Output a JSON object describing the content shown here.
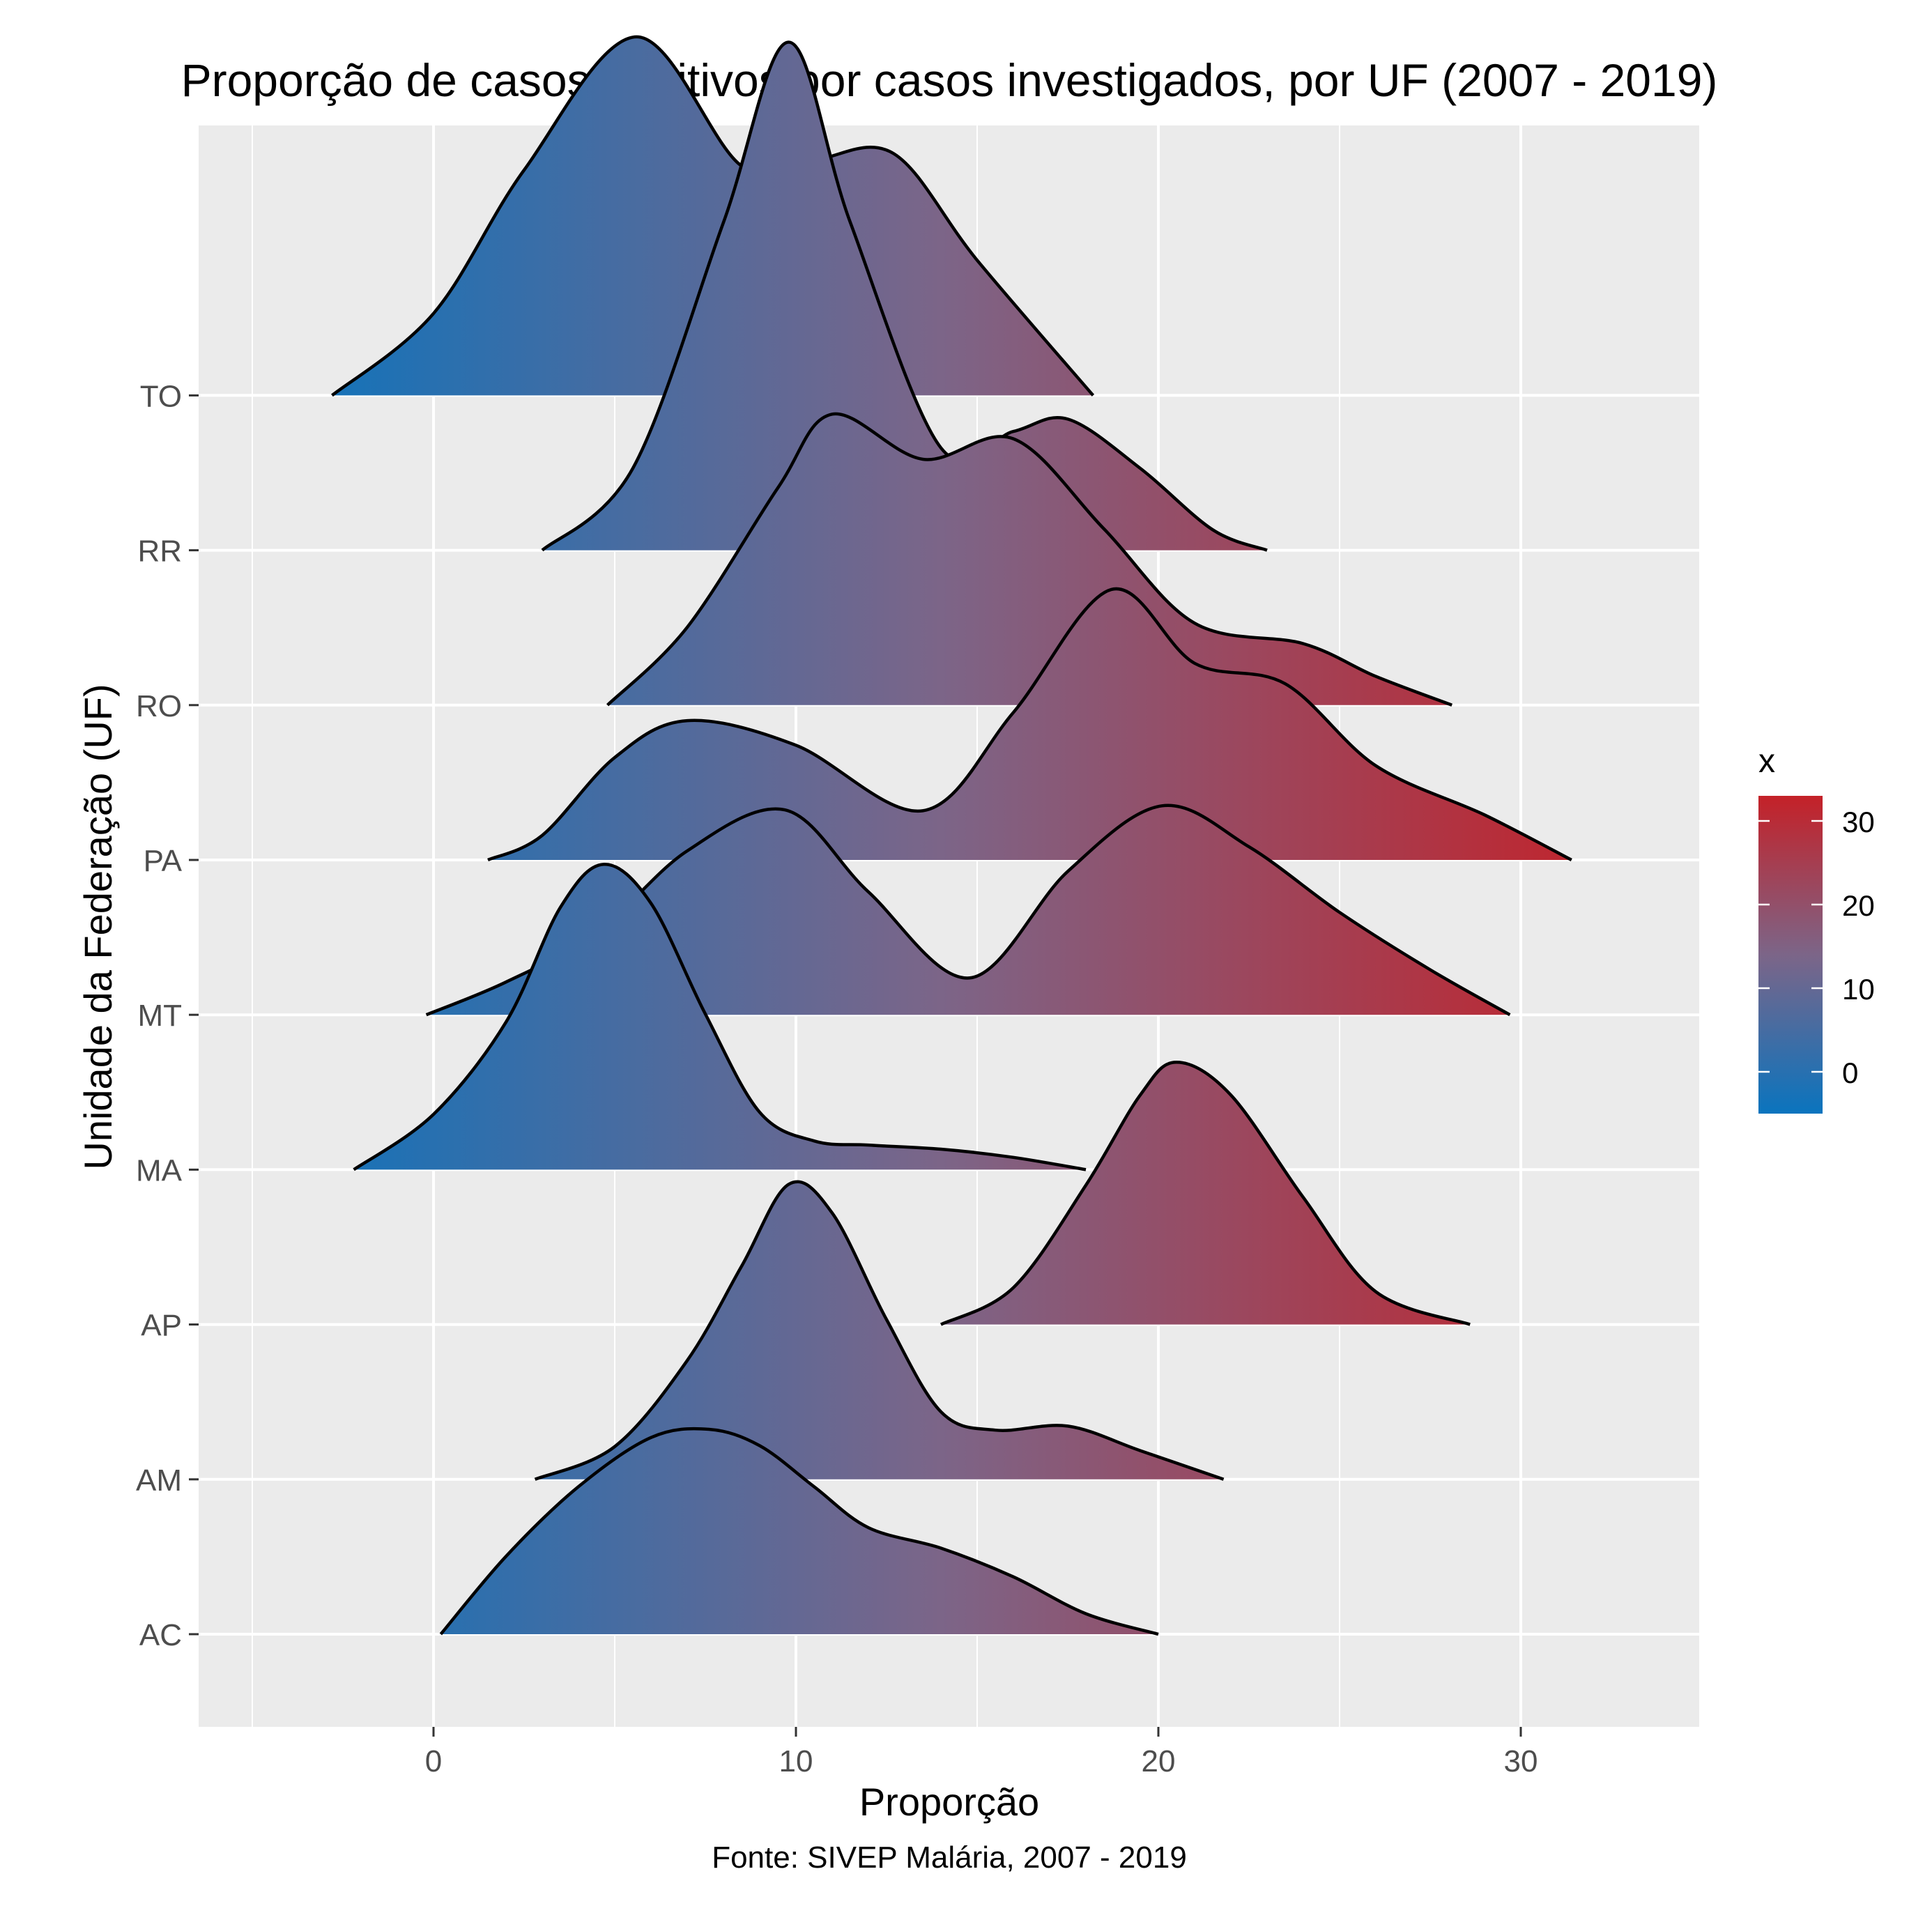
{
  "chart_data": {
    "type": "ridgeline",
    "title": "Proporção de casos positivos por casos investigados, por UF (2007 - 2019)",
    "xlabel": "Proporção",
    "ylabel": "Unidade da Federação (UF)",
    "caption": "Fonte: SIVEP Malária, 2007 - 2019",
    "xlim": [
      -6.5,
      35
    ],
    "x_ticks": [
      0,
      10,
      20,
      30
    ],
    "categories": [
      "AC",
      "AM",
      "AP",
      "MA",
      "MT",
      "PA",
      "RO",
      "RR",
      "TO"
    ],
    "grid": true,
    "legend": {
      "title": "x",
      "position": "right",
      "ticks": [
        0,
        10,
        20,
        30
      ],
      "range": [
        -5,
        33
      ],
      "colors": [
        "#0a74be",
        "#7c6588",
        "#c42128"
      ]
    },
    "series": [
      {
        "name": "AC",
        "x": [
          0.2,
          2,
          4,
          6,
          7.6,
          9,
          10.5,
          12,
          14,
          16,
          18,
          20
        ],
        "density": [
          0.0,
          0.38,
          0.72,
          0.96,
          1.0,
          0.92,
          0.72,
          0.52,
          0.42,
          0.28,
          0.1,
          0.0
        ]
      },
      {
        "name": "AM",
        "x": [
          2.8,
          5,
          7,
          8.5,
          9.8,
          11,
          12.5,
          14,
          15.5,
          17.5,
          19.5,
          21.8
        ],
        "density": [
          0.0,
          0.16,
          0.58,
          1.04,
          1.44,
          1.3,
          0.78,
          0.33,
          0.24,
          0.26,
          0.14,
          0.0
        ]
      },
      {
        "name": "AP",
        "x": [
          14,
          16,
          18,
          19.5,
          20.5,
          22,
          24,
          26,
          28.6
        ],
        "density": [
          0.0,
          0.18,
          0.68,
          1.12,
          1.28,
          1.12,
          0.62,
          0.16,
          0.0
        ]
      },
      {
        "name": "MA",
        "x": [
          -2.2,
          0,
          2,
          3.5,
          4.7,
          6,
          7.5,
          9,
          10.5,
          12,
          14,
          16,
          18
        ],
        "density": [
          0.0,
          0.27,
          0.72,
          1.28,
          1.49,
          1.3,
          0.76,
          0.28,
          0.14,
          0.12,
          0.1,
          0.06,
          0.0
        ]
      },
      {
        "name": "MT",
        "x": [
          -0.2,
          2,
          4.5,
          7,
          9.7,
          12,
          14.8,
          17.5,
          20.1,
          22.5,
          25,
          27.5,
          29.7
        ],
        "density": [
          0.0,
          0.16,
          0.4,
          0.8,
          1.0,
          0.6,
          0.18,
          0.7,
          1.02,
          0.82,
          0.5,
          0.22,
          0.0
        ]
      },
      {
        "name": "PA",
        "x": [
          1.5,
          3,
          5,
          7,
          10,
          13.5,
          16,
          18.7,
          21,
          23.5,
          26,
          29,
          31.4
        ],
        "density": [
          0.0,
          0.12,
          0.5,
          0.68,
          0.56,
          0.24,
          0.72,
          1.32,
          0.96,
          0.86,
          0.46,
          0.22,
          0.0
        ]
      },
      {
        "name": "RO",
        "x": [
          4.8,
          7,
          9.5,
          11,
          13.5,
          16,
          18.5,
          21,
          24,
          26,
          28.1
        ],
        "density": [
          0.0,
          0.38,
          1.06,
          1.42,
          1.2,
          1.3,
          0.86,
          0.4,
          0.3,
          0.14,
          0.0
        ]
      },
      {
        "name": "RR",
        "x": [
          3,
          5.5,
          8,
          9.8,
          11.5,
          14,
          16,
          17.5,
          19.5,
          21.5,
          23
        ],
        "density": [
          0.0,
          0.4,
          1.6,
          2.48,
          1.6,
          0.5,
          0.58,
          0.64,
          0.4,
          0.1,
          0.0
        ]
      },
      {
        "name": "TO",
        "x": [
          -2.8,
          0,
          2.5,
          5.6,
          8.5,
          10.5,
          12.7,
          15,
          18.2
        ],
        "density": [
          0.0,
          0.4,
          1.1,
          1.75,
          1.12,
          1.15,
          1.18,
          0.66,
          0.0
        ]
      }
    ]
  }
}
